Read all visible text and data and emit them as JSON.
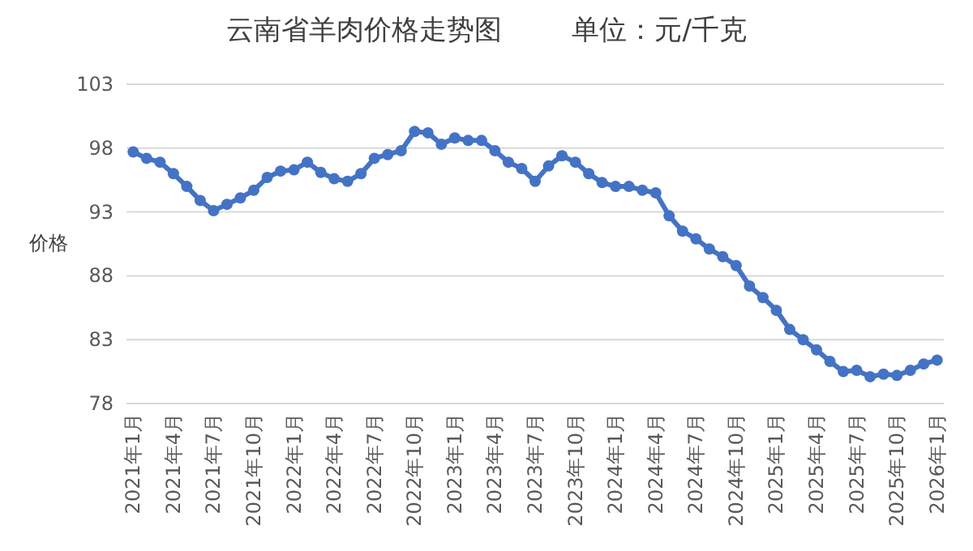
{
  "chart_data": {
    "type": "line",
    "title": "云南省羊肉价格走势图        单位：元/千克",
    "ylabel": "价格",
    "categories": [
      "2021年1月",
      null,
      null,
      "2021年4月",
      null,
      null,
      "2021年7月",
      null,
      null,
      "2021年10月",
      null,
      null,
      "2022年1月",
      null,
      null,
      "2022年4月",
      null,
      null,
      "2022年7月",
      null,
      null,
      "2022年10月",
      null,
      null,
      "2023年1月",
      null,
      null,
      "2023年4月",
      null,
      null,
      "2023年7月",
      null,
      null,
      "2023年10月",
      null,
      null,
      "2024年1月",
      null,
      null,
      "2024年4月",
      null,
      null,
      "2024年7月",
      null,
      null,
      "2024年10月",
      null,
      null,
      "2025年1月",
      null,
      null,
      "2025年4月",
      null,
      null,
      "2025年7月",
      null,
      null,
      "2025年10月",
      null,
      null,
      "2026年1月"
    ],
    "series": [
      {
        "color": "#4472c4",
        "values": [
          97.7,
          97.2,
          96.9,
          96.0,
          95.0,
          93.9,
          93.1,
          93.6,
          94.1,
          94.7,
          95.7,
          96.2,
          96.3,
          96.9,
          96.1,
          95.6,
          95.4,
          96.0,
          97.2,
          97.5,
          97.8,
          99.3,
          99.2,
          98.3,
          98.8,
          98.6,
          98.6,
          97.8,
          96.9,
          96.4,
          95.4,
          96.6,
          97.4,
          96.9,
          96.0,
          95.3,
          95.0,
          95.0,
          94.7,
          94.5,
          92.7,
          91.5,
          90.9,
          90.1,
          89.5,
          88.8,
          87.2,
          86.3,
          85.3,
          83.8,
          83.0,
          82.2,
          81.3,
          80.5,
          80.6,
          80.1,
          80.3,
          80.2,
          80.6,
          81.1,
          81.4
        ]
      }
    ],
    "ylim": [
      78,
      103
    ],
    "yticks": [
      78,
      83,
      88,
      93,
      98,
      103
    ],
    "grid": "y",
    "marker": "circle",
    "line_style": "solid"
  }
}
